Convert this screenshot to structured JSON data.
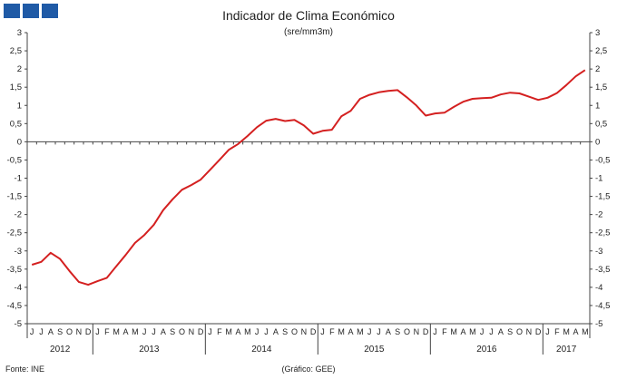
{
  "logo_colors": [
    "#1f5aa6",
    "#1f5aa6",
    "#1f5aa6"
  ],
  "chart_data": {
    "type": "line",
    "title": "Indicador de Clima Económico",
    "subtitle": "(sre/mm3m)",
    "ylim": [
      -5,
      3
    ],
    "yticks": [
      -5,
      -4.5,
      -4,
      -3.5,
      -3,
      -2.5,
      -2,
      -1.5,
      -1,
      -0.5,
      0,
      0.5,
      1,
      1.5,
      2,
      2.5,
      3
    ],
    "ytick_labels": [
      "-5",
      "-4,5",
      "-4",
      "-3,5",
      "-3",
      "-2,5",
      "-2",
      "-1,5",
      "-1",
      "-0,5",
      "0",
      "0,5",
      "1",
      "1,5",
      "2",
      "2,5",
      "3"
    ],
    "month_labels": [
      "J",
      "J",
      "A",
      "S",
      "O",
      "N",
      "D",
      "J",
      "F",
      "M",
      "A",
      "M",
      "J",
      "J",
      "A",
      "S",
      "O",
      "N",
      "D",
      "J",
      "F",
      "M",
      "A",
      "M",
      "J",
      "J",
      "A",
      "S",
      "O",
      "N",
      "D",
      "J",
      "F",
      "M",
      "A",
      "M",
      "J",
      "J",
      "A",
      "S",
      "O",
      "N",
      "D",
      "J",
      "F",
      "M",
      "A",
      "M",
      "J",
      "J",
      "A",
      "S",
      "O",
      "N",
      "D",
      "J",
      "F",
      "M",
      "A",
      "M"
    ],
    "year_labels": [
      "2012",
      "2013",
      "2014",
      "2015",
      "2016",
      "2017"
    ],
    "year_month_counts": [
      7,
      12,
      12,
      12,
      12,
      5
    ],
    "series": [
      {
        "color": "#d42020",
        "values": [
          -3.38,
          -3.3,
          -3.05,
          -3.22,
          -3.55,
          -3.85,
          -3.93,
          -3.83,
          -3.74,
          -3.42,
          -3.11,
          -2.78,
          -2.56,
          -2.28,
          -1.88,
          -1.58,
          -1.32,
          -1.19,
          -1.04,
          -0.77,
          -0.5,
          -0.22,
          -0.06,
          0.16,
          0.4,
          0.58,
          0.63,
          0.57,
          0.6,
          0.45,
          0.22,
          0.3,
          0.33,
          0.7,
          0.85,
          1.18,
          1.29,
          1.36,
          1.4,
          1.42,
          1.22,
          1.0,
          0.72,
          0.78,
          0.8,
          0.96,
          1.1,
          1.18,
          1.2,
          1.21,
          1.3,
          1.35,
          1.33,
          1.24,
          1.15,
          1.21,
          1.34,
          1.56,
          1.8,
          1.97
        ]
      }
    ],
    "grid": false,
    "legend": "none"
  },
  "footer": {
    "source": "Fonte: INE",
    "credit": "(Gráfico: GEE)"
  }
}
